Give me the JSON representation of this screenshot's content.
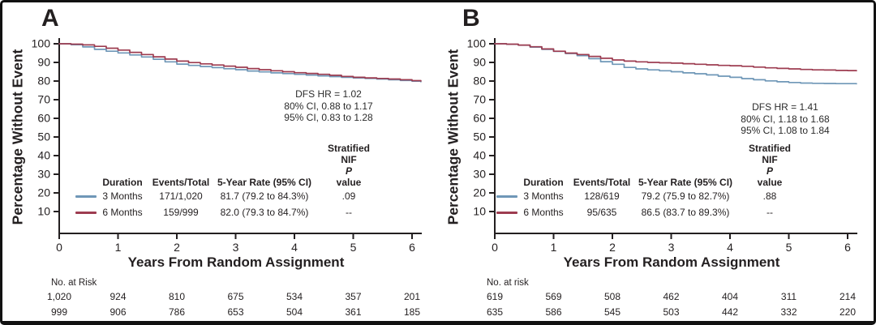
{
  "figure": {
    "border_color": "#111111",
    "background": "#ffffff",
    "text_color": "#231f20"
  },
  "chart_data": [
    {
      "type": "line",
      "subtype": "kaplan-meier-step",
      "title": "",
      "xlabel": "Years From Random Assignment",
      "ylabel": "Percentage Without Event",
      "xlim": [
        0,
        6.2
      ],
      "ylim": [
        0,
        100
      ],
      "xticks": [
        0,
        1,
        2,
        3,
        4,
        5,
        6
      ],
      "yticks": [
        10,
        20,
        30,
        40,
        50,
        60,
        70,
        80,
        90,
        100
      ],
      "grid": false,
      "legend_position": "inside-lower-left-table",
      "annotations": [
        "DFS HR = 1.02",
        "80% CI, 0.88 to 1.17",
        "95% CI, 0.83 to 1.28"
      ],
      "series": [
        {
          "name": "3 Months",
          "color": "#6f97b7",
          "x": [
            0,
            0.2,
            0.4,
            0.6,
            0.8,
            1,
            1.2,
            1.4,
            1.6,
            1.8,
            2,
            2.2,
            2.4,
            2.6,
            2.8,
            3,
            3.2,
            3.4,
            3.6,
            3.8,
            4,
            4.2,
            4.4,
            4.6,
            4.8,
            5,
            5.2,
            5.4,
            5.6,
            5.8,
            6,
            6.15
          ],
          "y": [
            100,
            99.5,
            98.3,
            97.0,
            96.0,
            95.1,
            94.0,
            92.9,
            91.7,
            90.3,
            89.1,
            88.4,
            87.8,
            87.2,
            86.6,
            86.1,
            85.4,
            84.9,
            84.4,
            84.0,
            83.6,
            83.2,
            82.8,
            82.4,
            82.0,
            81.7,
            81.4,
            81.1,
            80.7,
            80.3,
            79.9,
            79.6
          ]
        },
        {
          "name": "6 Months",
          "color": "#9d3c50",
          "x": [
            0,
            0.2,
            0.4,
            0.6,
            0.8,
            1,
            1.2,
            1.4,
            1.6,
            1.8,
            2,
            2.2,
            2.4,
            2.6,
            2.8,
            3,
            3.2,
            3.4,
            3.6,
            3.8,
            4,
            4.2,
            4.4,
            4.6,
            4.8,
            5,
            5.2,
            5.4,
            5.6,
            5.8,
            6,
            6.15
          ],
          "y": [
            100,
            99.8,
            99.4,
            98.6,
            97.6,
            96.6,
            95.4,
            94.2,
            93.0,
            91.8,
            90.7,
            89.9,
            89.2,
            88.6,
            88.0,
            87.4,
            86.7,
            86.1,
            85.5,
            85.0,
            84.5,
            84.1,
            83.6,
            83.1,
            82.5,
            82.0,
            81.7,
            81.4,
            81.1,
            80.7,
            80.2,
            80.0
          ]
        }
      ]
    },
    {
      "type": "line",
      "subtype": "kaplan-meier-step",
      "title": "",
      "xlabel": "Years From Random Assignment",
      "ylabel": "Percentage Without Event",
      "xlim": [
        0,
        6.2
      ],
      "ylim": [
        0,
        100
      ],
      "xticks": [
        0,
        1,
        2,
        3,
        4,
        5,
        6
      ],
      "yticks": [
        10,
        20,
        30,
        40,
        50,
        60,
        70,
        80,
        90,
        100
      ],
      "grid": false,
      "legend_position": "inside-lower-left-table",
      "annotations": [
        "DFS HR = 1.41",
        "80% CI, 1.18 to 1.68",
        "95% CI, 1.08 to 1.84"
      ],
      "series": [
        {
          "name": "3 Months",
          "color": "#6f97b7",
          "x": [
            0,
            0.2,
            0.4,
            0.6,
            0.8,
            1,
            1.2,
            1.4,
            1.6,
            1.8,
            2,
            2.2,
            2.4,
            2.6,
            2.8,
            3,
            3.2,
            3.4,
            3.6,
            3.8,
            4,
            4.2,
            4.4,
            4.6,
            4.8,
            5,
            5.2,
            5.4,
            5.6,
            5.8,
            6,
            6.15
          ],
          "y": [
            100,
            99.7,
            99.2,
            98.2,
            97.0,
            95.9,
            94.8,
            93.6,
            92.0,
            90.4,
            89.0,
            87.3,
            86.5,
            86.0,
            85.5,
            85.0,
            84.4,
            83.9,
            83.3,
            82.6,
            82.0,
            81.3,
            80.7,
            80.1,
            79.6,
            79.2,
            78.9,
            78.8,
            78.7,
            78.6,
            78.6,
            78.5
          ]
        },
        {
          "name": "6 Months",
          "color": "#9d3c50",
          "x": [
            0,
            0.2,
            0.4,
            0.6,
            0.8,
            1,
            1.2,
            1.4,
            1.6,
            1.8,
            2,
            2.2,
            2.4,
            2.6,
            2.8,
            3,
            3.2,
            3.4,
            3.6,
            3.8,
            4,
            4.2,
            4.4,
            4.6,
            4.8,
            5,
            5.2,
            5.4,
            5.6,
            5.8,
            6,
            6.15
          ],
          "y": [
            100,
            99.8,
            99.3,
            98.4,
            97.2,
            96.0,
            95.0,
            94.2,
            93.2,
            92.2,
            91.3,
            90.7,
            90.3,
            90.0,
            89.8,
            89.6,
            89.3,
            89.0,
            88.7,
            88.4,
            88.2,
            87.9,
            87.5,
            87.1,
            86.8,
            86.5,
            86.2,
            86.0,
            85.9,
            85.7,
            85.6,
            85.5
          ]
        }
      ]
    }
  ],
  "panels": [
    {
      "letter": "A",
      "stats_table": {
        "headers": {
          "duration": "Duration",
          "events": "Events/Total",
          "rate": "5-Year Rate (95% CI)",
          "stratified_line1": "Stratified",
          "nif_prefix": "NIF",
          "p_italic": "P",
          "value_suffix": "value"
        },
        "rows": [
          {
            "duration": "3 Months",
            "events_total": "171/1,020",
            "rate": "81.7 (79.2 to 84.3%)",
            "p_value": ".09"
          },
          {
            "duration": "6 Months",
            "events_total": "159/999",
            "rate": "82.0 (79.3 to 84.7%)",
            "p_value": "--"
          }
        ]
      },
      "risk": {
        "title": "No. at Risk",
        "rows": [
          [
            "1,020",
            "924",
            "810",
            "675",
            "534",
            "357",
            "201"
          ],
          [
            "999",
            "906",
            "786",
            "653",
            "504",
            "361",
            "185"
          ]
        ]
      }
    },
    {
      "letter": "B",
      "stats_table": {
        "headers": {
          "duration": "Duration",
          "events": "Events/Total",
          "rate": "5-Year Rate (95% CI)",
          "stratified_line1": "Stratified",
          "nif_prefix": "NIF",
          "p_italic": "P",
          "value_suffix": "value"
        },
        "rows": [
          {
            "duration": "3 Months",
            "events_total": "128/619",
            "rate": "79.2 (75.9 to 82.7%)",
            "p_value": ".88"
          },
          {
            "duration": "6 Months",
            "events_total": "95/635",
            "rate": "86.5 (83.7 to 89.3%)",
            "p_value": "--"
          }
        ]
      },
      "risk": {
        "title": "No. at risk",
        "rows": [
          [
            "619",
            "569",
            "508",
            "462",
            "404",
            "311",
            "214"
          ],
          [
            "635",
            "586",
            "545",
            "503",
            "442",
            "332",
            "220"
          ]
        ]
      }
    }
  ]
}
